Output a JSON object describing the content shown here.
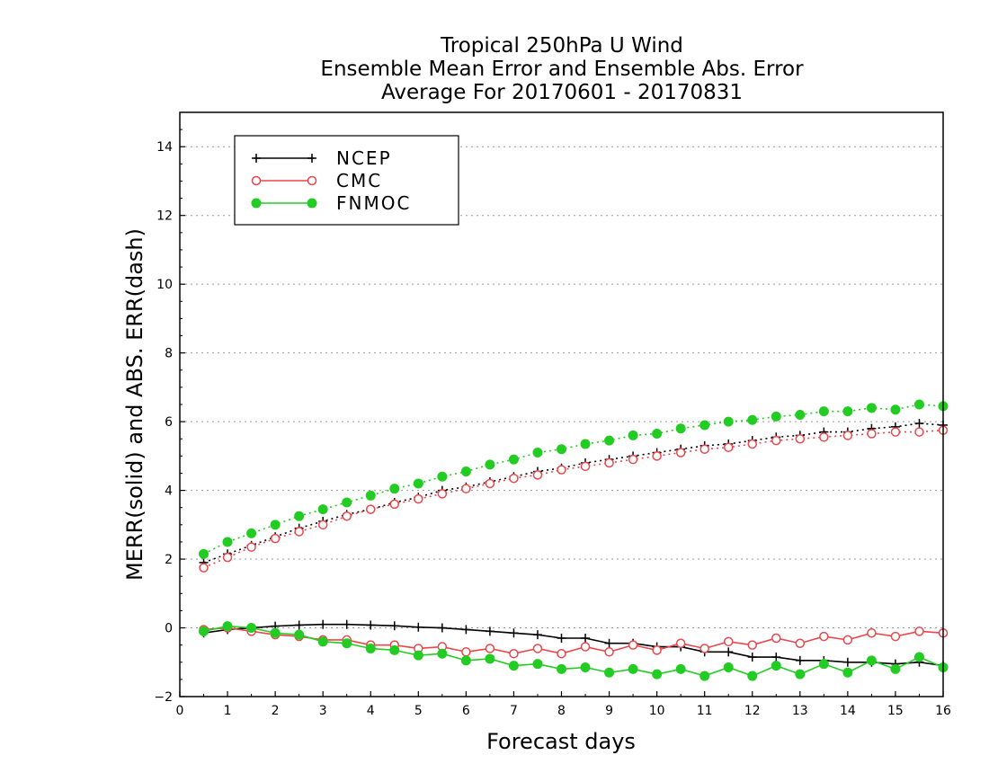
{
  "chart_data": {
    "type": "line",
    "title_lines": [
      "Tropical 250hPa U Wind",
      "Ensemble Mean Error and Ensemble Abs. Error",
      "Average For 20170601 - 20170831"
    ],
    "xlabel": "Forecast days",
    "ylabel": "MERR(solid) and ABS. ERR(dash)",
    "xlim": [
      0,
      16
    ],
    "ylim": [
      -2,
      15
    ],
    "xticks": [
      0,
      1,
      2,
      3,
      4,
      5,
      6,
      7,
      8,
      9,
      10,
      11,
      12,
      13,
      14,
      15,
      16
    ],
    "yticks": [
      -2,
      0,
      2,
      4,
      6,
      8,
      10,
      12,
      14
    ],
    "grid": "horizontal-dotted",
    "legend_position": "top-left",
    "x": [
      0.5,
      1,
      1.5,
      2,
      2.5,
      3,
      3.5,
      4,
      4.5,
      5,
      5.5,
      6,
      6.5,
      7,
      7.5,
      8,
      8.5,
      9,
      9.5,
      10,
      10.5,
      11,
      11.5,
      12,
      12.5,
      13,
      13.5,
      14,
      14.5,
      15,
      15.5,
      16
    ],
    "series": [
      {
        "name": "NCEP",
        "color": "#000000",
        "marker": "plus",
        "merr": [
          -0.15,
          -0.05,
          0.0,
          0.05,
          0.08,
          0.1,
          0.1,
          0.08,
          0.06,
          0.02,
          0.0,
          -0.05,
          -0.1,
          -0.15,
          -0.2,
          -0.3,
          -0.3,
          -0.45,
          -0.45,
          -0.55,
          -0.55,
          -0.7,
          -0.7,
          -0.85,
          -0.85,
          -0.95,
          -0.95,
          -1.0,
          -1.0,
          -1.05,
          -1.0,
          -1.1
        ],
        "abs_err": [
          1.9,
          2.15,
          2.4,
          2.65,
          2.9,
          3.1,
          3.3,
          3.45,
          3.65,
          3.8,
          4.0,
          4.1,
          4.25,
          4.4,
          4.55,
          4.65,
          4.8,
          4.9,
          5.0,
          5.1,
          5.2,
          5.3,
          5.35,
          5.45,
          5.55,
          5.6,
          5.7,
          5.7,
          5.8,
          5.85,
          5.95,
          5.9
        ]
      },
      {
        "name": "CMC",
        "color": "#e8474c",
        "marker": "open-circle",
        "merr": [
          -0.05,
          0.0,
          -0.1,
          -0.2,
          -0.25,
          -0.35,
          -0.35,
          -0.5,
          -0.5,
          -0.6,
          -0.55,
          -0.7,
          -0.6,
          -0.75,
          -0.6,
          -0.75,
          -0.55,
          -0.7,
          -0.5,
          -0.65,
          -0.45,
          -0.6,
          -0.4,
          -0.5,
          -0.3,
          -0.45,
          -0.25,
          -0.35,
          -0.15,
          -0.25,
          -0.1,
          -0.15
        ],
        "abs_err": [
          1.75,
          2.05,
          2.35,
          2.6,
          2.8,
          3.0,
          3.25,
          3.45,
          3.6,
          3.75,
          3.9,
          4.05,
          4.2,
          4.35,
          4.45,
          4.6,
          4.7,
          4.8,
          4.9,
          5.0,
          5.1,
          5.2,
          5.25,
          5.35,
          5.45,
          5.5,
          5.55,
          5.6,
          5.65,
          5.7,
          5.7,
          5.75
        ]
      },
      {
        "name": "FNMOC",
        "color": "#22cc22",
        "marker": "filled-circle",
        "merr": [
          -0.1,
          0.05,
          0.0,
          -0.15,
          -0.2,
          -0.4,
          -0.45,
          -0.6,
          -0.65,
          -0.8,
          -0.75,
          -0.95,
          -0.9,
          -1.1,
          -1.05,
          -1.2,
          -1.15,
          -1.3,
          -1.2,
          -1.35,
          -1.2,
          -1.4,
          -1.15,
          -1.4,
          -1.1,
          -1.35,
          -1.05,
          -1.3,
          -0.95,
          -1.2,
          -0.85,
          -1.15
        ],
        "abs_err": [
          2.15,
          2.5,
          2.75,
          3.0,
          3.25,
          3.45,
          3.65,
          3.85,
          4.05,
          4.2,
          4.4,
          4.55,
          4.75,
          4.9,
          5.1,
          5.2,
          5.35,
          5.45,
          5.6,
          5.65,
          5.8,
          5.9,
          6.0,
          6.05,
          6.15,
          6.2,
          6.3,
          6.3,
          6.4,
          6.35,
          6.5,
          6.45
        ]
      }
    ]
  }
}
